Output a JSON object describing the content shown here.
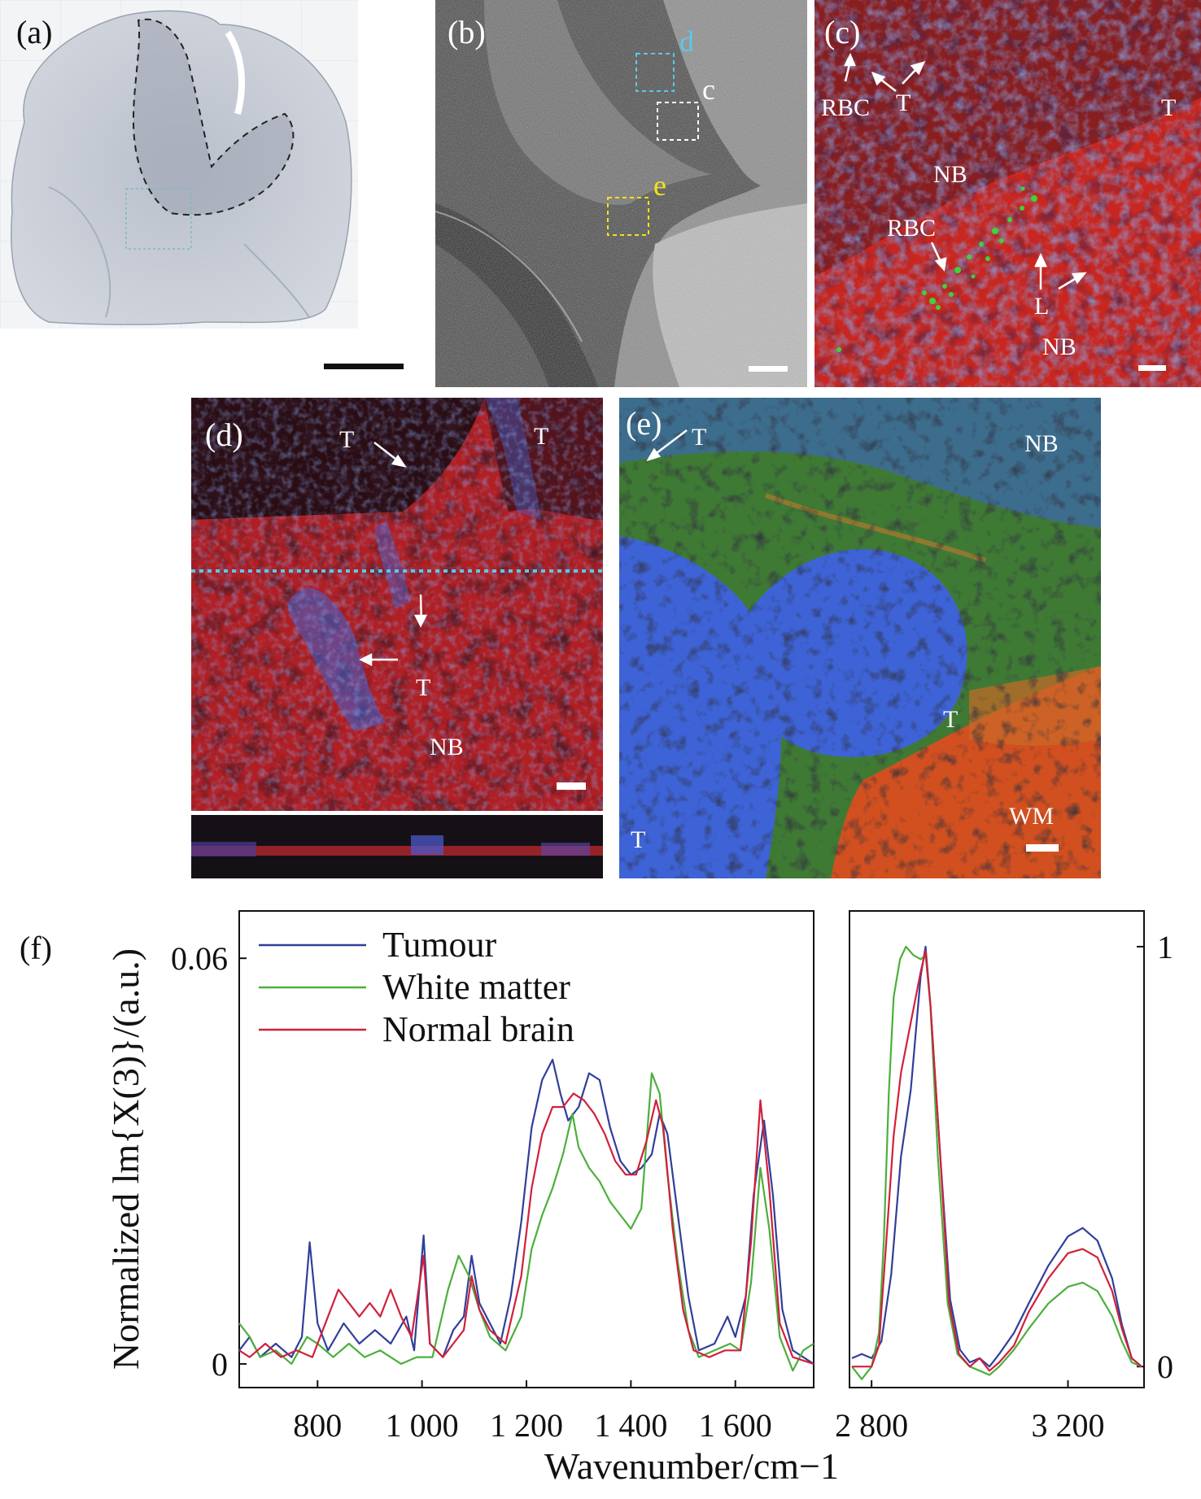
{
  "panels": {
    "a": {
      "label": "(a)"
    },
    "b": {
      "label": "(b)",
      "box_d": "d",
      "box_c": "c",
      "box_e": "e"
    },
    "c": {
      "label": "(c)",
      "rbc_top": "RBC",
      "t_top": "T",
      "t_right": "T",
      "nb_mid": "NB",
      "rbc_mid": "RBC",
      "l": "L",
      "nb_bottom": "NB"
    },
    "d": {
      "label": "(d)",
      "t_top_right": "T",
      "t_upper": "T",
      "t_lower": "T",
      "nb": "NB"
    },
    "e": {
      "label": "(e)",
      "t_top": "T",
      "nb": "NB",
      "t_center": "T",
      "t_bottom_left": "T",
      "wm": "WM"
    }
  },
  "colors": {
    "tumour": "#2f3f9a",
    "white_matter": "#4caf3c",
    "normal_brain": "#d0203c",
    "panel_c_bg": "#c8261f",
    "panel_d_bg": "#b01f23",
    "panel_e_bg": "#2f6a2e",
    "nucleus_blue": "#3d63d6",
    "box_d": "#5bc8e8",
    "box_c": "#ffffff",
    "box_e": "#f2e21a"
  },
  "chart_data": {
    "panel_label": "(f)",
    "type": "line",
    "ylabel": "Normalized lm{X(3)}/(a.u.)",
    "xlabel": "Wavenumber/cm−1",
    "legend": {
      "placement": "top-left",
      "entries": [
        "Tumour",
        "White matter",
        "Normal brain"
      ]
    },
    "left": {
      "xlim": [
        650,
        1750
      ],
      "ylim": [
        -0.0035,
        0.067
      ],
      "xticks": [
        800,
        1000,
        1200,
        1400,
        1600
      ],
      "xtick_labels": [
        "800",
        "1 000",
        "1 200",
        "1 400",
        "1 600"
      ],
      "yticks": [
        0,
        0.06
      ],
      "ytick_labels": [
        "0",
        "0.06"
      ],
      "series": [
        {
          "name": "Tumour",
          "color": "#2f3f9a",
          "points": [
            [
              650,
              0.002
            ],
            [
              670,
              0.004
            ],
            [
              690,
              0.001
            ],
            [
              720,
              0.003
            ],
            [
              750,
              0.001
            ],
            [
              770,
              0.004
            ],
            [
              785,
              0.018
            ],
            [
              800,
              0.006
            ],
            [
              820,
              0.002
            ],
            [
              850,
              0.006
            ],
            [
              880,
              0.003
            ],
            [
              910,
              0.005
            ],
            [
              940,
              0.003
            ],
            [
              970,
              0.007
            ],
            [
              985,
              0.002
            ],
            [
              1003,
              0.019
            ],
            [
              1015,
              0.003
            ],
            [
              1040,
              0.001
            ],
            [
              1060,
              0.005
            ],
            [
              1080,
              0.007
            ],
            [
              1095,
              0.016
            ],
            [
              1110,
              0.009
            ],
            [
              1130,
              0.006
            ],
            [
              1150,
              0.003
            ],
            [
              1170,
              0.01
            ],
            [
              1190,
              0.021
            ],
            [
              1210,
              0.035
            ],
            [
              1230,
              0.042
            ],
            [
              1250,
              0.045
            ],
            [
              1265,
              0.04
            ],
            [
              1280,
              0.036
            ],
            [
              1300,
              0.038
            ],
            [
              1320,
              0.043
            ],
            [
              1340,
              0.042
            ],
            [
              1360,
              0.035
            ],
            [
              1380,
              0.03
            ],
            [
              1400,
              0.028
            ],
            [
              1420,
              0.029
            ],
            [
              1440,
              0.031
            ],
            [
              1455,
              0.037
            ],
            [
              1470,
              0.034
            ],
            [
              1490,
              0.022
            ],
            [
              1510,
              0.01
            ],
            [
              1530,
              0.002
            ],
            [
              1560,
              0.003
            ],
            [
              1585,
              0.007
            ],
            [
              1600,
              0.004
            ],
            [
              1620,
              0.01
            ],
            [
              1635,
              0.025
            ],
            [
              1655,
              0.036
            ],
            [
              1672,
              0.025
            ],
            [
              1690,
              0.008
            ],
            [
              1710,
              0.002
            ],
            [
              1730,
              0.001
            ],
            [
              1750,
              0.0
            ]
          ]
        },
        {
          "name": "White matter",
          "color": "#4caf3c",
          "points": [
            [
              650,
              0.006
            ],
            [
              670,
              0.004
            ],
            [
              690,
              0.001
            ],
            [
              720,
              0.002
            ],
            [
              750,
              0.0
            ],
            [
              780,
              0.004
            ],
            [
              800,
              0.003
            ],
            [
              830,
              0.001
            ],
            [
              860,
              0.003
            ],
            [
              890,
              0.001
            ],
            [
              920,
              0.002
            ],
            [
              960,
              0.0
            ],
            [
              990,
              0.001
            ],
            [
              1020,
              0.001
            ],
            [
              1050,
              0.011
            ],
            [
              1070,
              0.016
            ],
            [
              1090,
              0.013
            ],
            [
              1110,
              0.008
            ],
            [
              1130,
              0.004
            ],
            [
              1160,
              0.002
            ],
            [
              1190,
              0.007
            ],
            [
              1210,
              0.017
            ],
            [
              1230,
              0.022
            ],
            [
              1250,
              0.026
            ],
            [
              1270,
              0.031
            ],
            [
              1288,
              0.037
            ],
            [
              1300,
              0.032
            ],
            [
              1320,
              0.029
            ],
            [
              1340,
              0.027
            ],
            [
              1360,
              0.024
            ],
            [
              1380,
              0.022
            ],
            [
              1400,
              0.02
            ],
            [
              1420,
              0.023
            ],
            [
              1440,
              0.043
            ],
            [
              1455,
              0.04
            ],
            [
              1470,
              0.028
            ],
            [
              1490,
              0.015
            ],
            [
              1510,
              0.005
            ],
            [
              1530,
              0.001
            ],
            [
              1560,
              0.002
            ],
            [
              1590,
              0.003
            ],
            [
              1610,
              0.002
            ],
            [
              1630,
              0.012
            ],
            [
              1648,
              0.029
            ],
            [
              1665,
              0.02
            ],
            [
              1685,
              0.004
            ],
            [
              1710,
              -0.001
            ],
            [
              1730,
              0.002
            ],
            [
              1750,
              0.003
            ]
          ]
        },
        {
          "name": "Normal brain",
          "color": "#d0203c",
          "points": [
            [
              650,
              0.002
            ],
            [
              670,
              0.001
            ],
            [
              700,
              0.003
            ],
            [
              730,
              0.001
            ],
            [
              760,
              0.002
            ],
            [
              790,
              0.001
            ],
            [
              820,
              0.007
            ],
            [
              840,
              0.011
            ],
            [
              860,
              0.009
            ],
            [
              880,
              0.007
            ],
            [
              900,
              0.009
            ],
            [
              920,
              0.007
            ],
            [
              940,
              0.011
            ],
            [
              960,
              0.007
            ],
            [
              980,
              0.004
            ],
            [
              1003,
              0.016
            ],
            [
              1015,
              0.003
            ],
            [
              1040,
              0.001
            ],
            [
              1060,
              0.003
            ],
            [
              1080,
              0.005
            ],
            [
              1095,
              0.013
            ],
            [
              1110,
              0.008
            ],
            [
              1130,
              0.005
            ],
            [
              1160,
              0.003
            ],
            [
              1190,
              0.013
            ],
            [
              1210,
              0.026
            ],
            [
              1230,
              0.034
            ],
            [
              1250,
              0.038
            ],
            [
              1270,
              0.038
            ],
            [
              1290,
              0.04
            ],
            [
              1310,
              0.039
            ],
            [
              1330,
              0.037
            ],
            [
              1350,
              0.034
            ],
            [
              1370,
              0.03
            ],
            [
              1390,
              0.028
            ],
            [
              1410,
              0.028
            ],
            [
              1430,
              0.033
            ],
            [
              1448,
              0.039
            ],
            [
              1462,
              0.035
            ],
            [
              1480,
              0.02
            ],
            [
              1500,
              0.008
            ],
            [
              1520,
              0.002
            ],
            [
              1550,
              0.001
            ],
            [
              1580,
              0.002
            ],
            [
              1610,
              0.002
            ],
            [
              1630,
              0.018
            ],
            [
              1648,
              0.039
            ],
            [
              1665,
              0.026
            ],
            [
              1685,
              0.006
            ],
            [
              1710,
              0.001
            ],
            [
              1750,
              0.0
            ]
          ]
        }
      ]
    },
    "right": {
      "xlim": [
        2755,
        3355
      ],
      "ylim": [
        -0.05,
        1.085
      ],
      "xticks": [
        2800,
        3200
      ],
      "xtick_labels": [
        "2 800",
        "3 200"
      ],
      "yticks": [
        0,
        1
      ],
      "ytick_labels": [
        "0",
        "1"
      ],
      "series": [
        {
          "name": "Tumour",
          "color": "#2f3f9a",
          "points": [
            [
              2760,
              0.02
            ],
            [
              2780,
              0.03
            ],
            [
              2800,
              0.02
            ],
            [
              2820,
              0.06
            ],
            [
              2840,
              0.22
            ],
            [
              2860,
              0.5
            ],
            [
              2880,
              0.66
            ],
            [
              2900,
              0.93
            ],
            [
              2910,
              1.0
            ],
            [
              2920,
              0.86
            ],
            [
              2940,
              0.5
            ],
            [
              2960,
              0.16
            ],
            [
              2980,
              0.04
            ],
            [
              3000,
              0.01
            ],
            [
              3020,
              0.02
            ],
            [
              3040,
              0.0
            ],
            [
              3060,
              0.03
            ],
            [
              3090,
              0.08
            ],
            [
              3120,
              0.15
            ],
            [
              3160,
              0.24
            ],
            [
              3200,
              0.31
            ],
            [
              3230,
              0.33
            ],
            [
              3260,
              0.3
            ],
            [
              3290,
              0.21
            ],
            [
              3310,
              0.1
            ],
            [
              3330,
              0.02
            ],
            [
              3350,
              0.0
            ]
          ]
        },
        {
          "name": "White matter",
          "color": "#4caf3c",
          "points": [
            [
              2760,
              0.0
            ],
            [
              2780,
              -0.03
            ],
            [
              2800,
              0.0
            ],
            [
              2815,
              0.08
            ],
            [
              2825,
              0.3
            ],
            [
              2835,
              0.65
            ],
            [
              2845,
              0.88
            ],
            [
              2858,
              0.97
            ],
            [
              2870,
              1.0
            ],
            [
              2885,
              0.98
            ],
            [
              2900,
              0.97
            ],
            [
              2910,
              0.98
            ],
            [
              2920,
              0.86
            ],
            [
              2935,
              0.5
            ],
            [
              2955,
              0.15
            ],
            [
              2975,
              0.03
            ],
            [
              3000,
              0.0
            ],
            [
              3020,
              -0.01
            ],
            [
              3040,
              -0.02
            ],
            [
              3060,
              0.0
            ],
            [
              3090,
              0.04
            ],
            [
              3120,
              0.09
            ],
            [
              3160,
              0.15
            ],
            [
              3200,
              0.19
            ],
            [
              3230,
              0.2
            ],
            [
              3260,
              0.18
            ],
            [
              3290,
              0.12
            ],
            [
              3310,
              0.06
            ],
            [
              3330,
              0.01
            ],
            [
              3350,
              0.0
            ]
          ]
        },
        {
          "name": "Normal brain",
          "color": "#d0203c",
          "points": [
            [
              2760,
              0.0
            ],
            [
              2780,
              0.0
            ],
            [
              2800,
              0.0
            ],
            [
              2815,
              0.05
            ],
            [
              2830,
              0.3
            ],
            [
              2845,
              0.55
            ],
            [
              2860,
              0.7
            ],
            [
              2880,
              0.82
            ],
            [
              2900,
              0.94
            ],
            [
              2910,
              0.99
            ],
            [
              2920,
              0.86
            ],
            [
              2940,
              0.5
            ],
            [
              2958,
              0.15
            ],
            [
              2978,
              0.03
            ],
            [
              3000,
              0.0
            ],
            [
              3020,
              0.02
            ],
            [
              3040,
              -0.01
            ],
            [
              3060,
              0.01
            ],
            [
              3090,
              0.05
            ],
            [
              3120,
              0.13
            ],
            [
              3160,
              0.21
            ],
            [
              3200,
              0.27
            ],
            [
              3230,
              0.28
            ],
            [
              3260,
              0.26
            ],
            [
              3290,
              0.18
            ],
            [
              3310,
              0.09
            ],
            [
              3330,
              0.02
            ],
            [
              3350,
              0.0
            ]
          ]
        }
      ]
    }
  }
}
